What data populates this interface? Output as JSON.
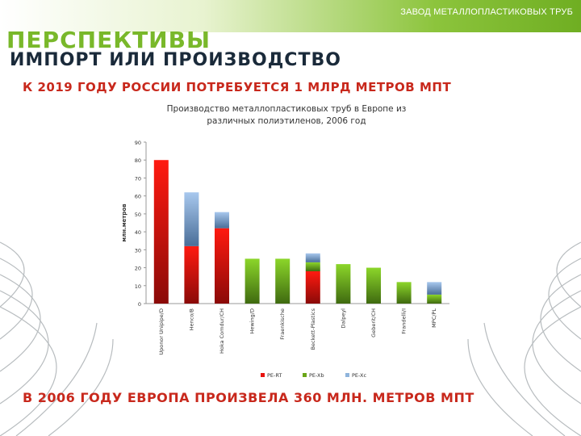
{
  "header": {
    "company": "ЗАВОД МЕТАЛЛОПЛАСТИКОВЫХ ТРУБ"
  },
  "slide": {
    "title": "ПЕРСПЕКТИВЫ",
    "heading": "ИМПОРТ ИЛИ ПРОИЗВОДСТВО",
    "subtitle": "К 2019 ГОДУ РОССИИ ПОТРЕБУЕТСЯ 1 МЛРД МЕТРОВ МПТ",
    "bottom": "В 2006 ГОДУ ЕВРОПА ПРОИЗВЕЛА 360 МЛН. МЕТРОВ МПТ"
  },
  "colors": {
    "pe_rt": "#e8130f",
    "pe_xb": "#6aa517",
    "pe_xc": "#8fb4dc",
    "accent_green": "#79b82a",
    "accent_red": "#c8281c"
  },
  "chart_data": {
    "type": "bar",
    "stacked": true,
    "title_lines": [
      "Производство металлопластиковых труб в Европе из",
      "различных полиэтиленов, 2006 год"
    ],
    "ylabel": "млн.метров",
    "ylim": [
      0,
      90
    ],
    "yticks": [
      "0",
      "10",
      "20",
      "30",
      "40",
      "50",
      "60",
      "70",
      "80",
      "90"
    ],
    "grid": false,
    "legend_position": "bottom",
    "categories": [
      "Uponor Unipipe/D",
      "Henco/B",
      "Hoka Comdur/CH",
      "Hewing/D",
      "Fraenkische",
      "Beckett-Plastics",
      "Dalpeyl",
      "Geberit/CH",
      "Frandelli/I",
      "MPC/PL"
    ],
    "series": [
      {
        "name": "PE-RT",
        "values": [
          80,
          32,
          42,
          0,
          0,
          18,
          0,
          0,
          0,
          0
        ]
      },
      {
        "name": "PE-Xb",
        "values": [
          0,
          0,
          0,
          25,
          25,
          5,
          22,
          20,
          12,
          5
        ]
      },
      {
        "name": "PE-Xc",
        "values": [
          0,
          30,
          9,
          0,
          0,
          5,
          0,
          0,
          0,
          7
        ]
      }
    ]
  }
}
